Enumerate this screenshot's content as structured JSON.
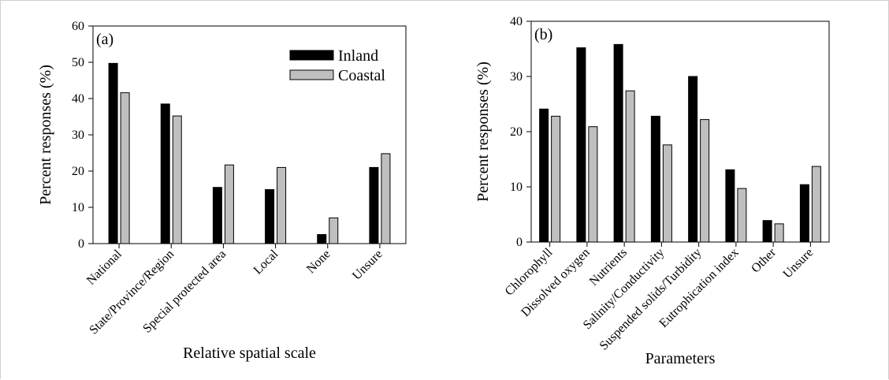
{
  "chart_data": [
    {
      "type": "bar",
      "panel_label": "(a)",
      "categories": [
        "National",
        "State/Province/Region",
        "Special protected area",
        "Local",
        "None",
        "Unsure"
      ],
      "series": [
        {
          "name": "Inland",
          "color": "#000000",
          "values": [
            49.7,
            38.5,
            15.5,
            14.9,
            2.5,
            21.0
          ]
        },
        {
          "name": "Coastal",
          "color": "#bfbfbf",
          "values": [
            41.6,
            35.2,
            21.7,
            21.0,
            7.1,
            24.8
          ]
        }
      ],
      "yticks": [
        "0",
        "10",
        "20",
        "30",
        "40",
        "50",
        "60"
      ],
      "ylim": [
        0,
        60
      ],
      "xlabel": "Relative spatial scale",
      "ylabel": "Percent responses (%)",
      "legend": "top-right",
      "grid": false
    },
    {
      "type": "bar",
      "panel_label": "(b)",
      "categories": [
        "Chlorophyll",
        "Dissolved oxygen",
        "Nutrients",
        "Salinity/Conductivity",
        "Suspended solids/Turbidity",
        "Eutrophication index",
        "Other",
        "Unsure"
      ],
      "series": [
        {
          "name": "Inland",
          "color": "#000000",
          "values": [
            24.1,
            35.2,
            35.8,
            22.8,
            30.0,
            13.1,
            3.9,
            10.4
          ]
        },
        {
          "name": "Coastal",
          "color": "#bfbfbf",
          "values": [
            22.8,
            20.9,
            27.4,
            17.6,
            22.2,
            9.7,
            3.3,
            13.7
          ]
        }
      ],
      "yticks": [
        "0",
        "10",
        "20",
        "30",
        "40"
      ],
      "ylim": [
        0,
        40
      ],
      "xlabel": "Parameters",
      "ylabel": "Percent responses (%)",
      "grid": false
    }
  ]
}
